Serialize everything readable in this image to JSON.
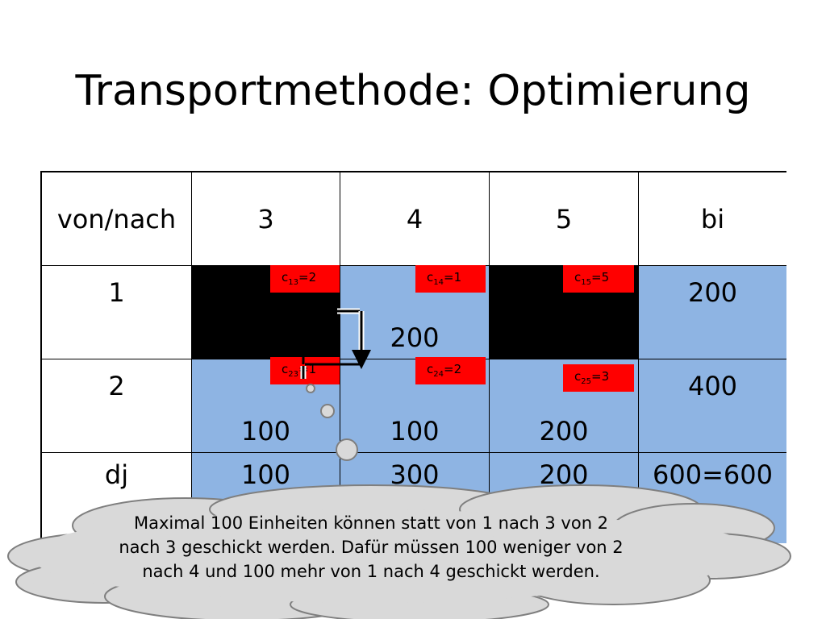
{
  "title": "Transportmethode: Optimierung",
  "table": {
    "header": [
      "von/nach",
      "3",
      "4",
      "5",
      "bi"
    ],
    "row1": {
      "label": "1",
      "c13_val": "2",
      "c14_val": "1",
      "c15_val": "5",
      "alloc_14": "200",
      "bi": "200"
    },
    "row2": {
      "label": "2",
      "c23_val": "1",
      "c24_val": "2",
      "c25_val": "3",
      "alloc_23": "100",
      "alloc_24": "100",
      "alloc_25": "200",
      "bi": "400"
    },
    "row3": {
      "label": "dj",
      "d3": "100",
      "d4": "300",
      "d5": "200",
      "total": "600=600"
    }
  },
  "cost_labels": {
    "c13": {
      "sub": "13"
    },
    "c14": {
      "sub": "14"
    },
    "c15": {
      "sub": "15"
    },
    "c23": {
      "sub": "23"
    },
    "c24": {
      "sub": "24"
    },
    "c25": {
      "sub": "25"
    }
  },
  "callout": {
    "text": "Maximal 100 Einheiten können statt von 1 nach 3 von 2 nach 3 geschickt werden. Dafür müssen 100 weniger von 2 nach 4 und 100 mehr von 1 nach 4 geschickt werden."
  },
  "colors": {
    "cell_blue": "#8eb4e3",
    "cost_red": "#ff0000",
    "cloud_fill": "#d9d9d9"
  }
}
